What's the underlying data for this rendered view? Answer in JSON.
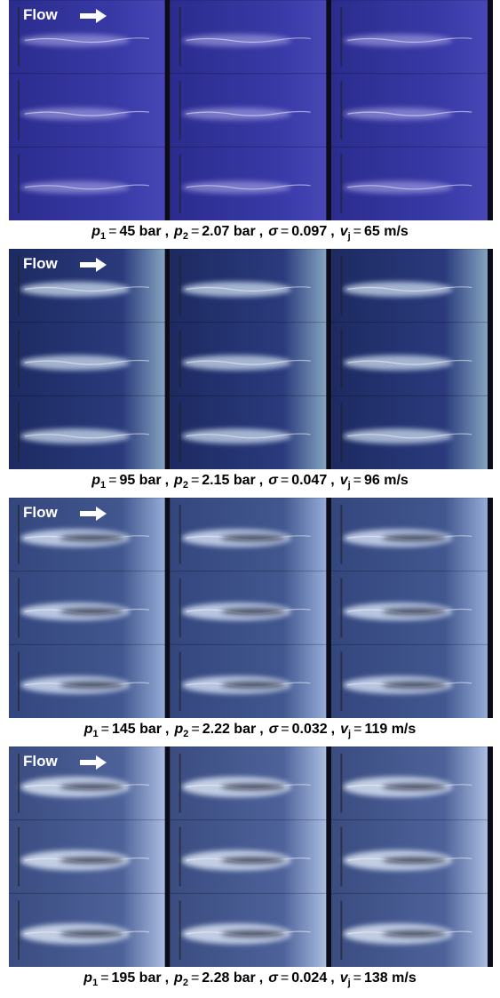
{
  "panels": [
    {
      "flow_label": "Flow",
      "caption": [
        {
          "symbol": "p",
          "sub": "1",
          "equals": "=",
          "value": "45 bar"
        },
        {
          "symbol": "p",
          "sub": "2",
          "equals": "=",
          "value": "2.07 bar"
        },
        {
          "symbol": "σ",
          "sub": null,
          "equals": "=",
          "value": "0.097"
        },
        {
          "symbol": "v",
          "sub": "j",
          "equals": "=",
          "value": "65 m/s"
        }
      ],
      "separator": ","
    },
    {
      "flow_label": "Flow",
      "caption": [
        {
          "symbol": "p",
          "sub": "1",
          "equals": "=",
          "value": "95 bar"
        },
        {
          "symbol": "p",
          "sub": "2",
          "equals": "=",
          "value": "2.15 bar"
        },
        {
          "symbol": "σ",
          "sub": null,
          "equals": "=",
          "value": "0.047"
        },
        {
          "symbol": "v",
          "sub": "j",
          "equals": "=",
          "value": "96 m/s"
        }
      ],
      "separator": ","
    },
    {
      "flow_label": "Flow",
      "caption": [
        {
          "symbol": "p",
          "sub": "1",
          "equals": "=",
          "value": "145 bar"
        },
        {
          "symbol": "p",
          "sub": "2",
          "equals": "=",
          "value": "2.22 bar"
        },
        {
          "symbol": "σ",
          "sub": null,
          "equals": "=",
          "value": "0.032"
        },
        {
          "symbol": "v",
          "sub": "j",
          "equals": "=",
          "value": "119 m/s"
        }
      ],
      "separator": ","
    },
    {
      "flow_label": "Flow",
      "caption": [
        {
          "symbol": "p",
          "sub": "1",
          "equals": "=",
          "value": "195 bar"
        },
        {
          "symbol": "p",
          "sub": "2",
          "equals": "=",
          "value": "2.28 bar"
        },
        {
          "symbol": "σ",
          "sub": null,
          "equals": "=",
          "value": "0.024"
        },
        {
          "symbol": "v",
          "sub": "j",
          "equals": "=",
          "value": "138 m/s"
        }
      ],
      "separator": ","
    }
  ]
}
